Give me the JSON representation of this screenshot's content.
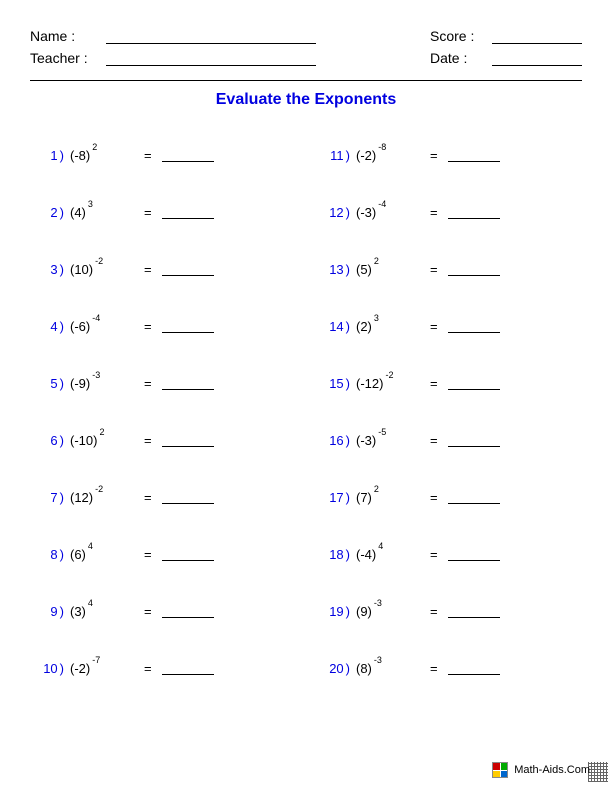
{
  "header": {
    "name_label": "Name :",
    "teacher_label": "Teacher :",
    "score_label": "Score :",
    "date_label": "Date :"
  },
  "title": {
    "text": "Evaluate the Exponents",
    "color": "#0000e0"
  },
  "number_color": "#0000e0",
  "columns": {
    "left": [
      {
        "n": "1",
        "base": "(-8)",
        "exp": "2"
      },
      {
        "n": "2",
        "base": "(4)",
        "exp": "3"
      },
      {
        "n": "3",
        "base": "(10)",
        "exp": "-2"
      },
      {
        "n": "4",
        "base": "(-6)",
        "exp": "-4"
      },
      {
        "n": "5",
        "base": "(-9)",
        "exp": "-3"
      },
      {
        "n": "6",
        "base": "(-10)",
        "exp": "2"
      },
      {
        "n": "7",
        "base": "(12)",
        "exp": "-2"
      },
      {
        "n": "8",
        "base": "(6)",
        "exp": "4"
      },
      {
        "n": "9",
        "base": "(3)",
        "exp": "4"
      },
      {
        "n": "10",
        "base": "(-2)",
        "exp": "-7"
      }
    ],
    "right": [
      {
        "n": "11",
        "base": "(-2)",
        "exp": "-8"
      },
      {
        "n": "12",
        "base": "(-3)",
        "exp": "-4"
      },
      {
        "n": "13",
        "base": "(5)",
        "exp": "2"
      },
      {
        "n": "14",
        "base": "(2)",
        "exp": "3"
      },
      {
        "n": "15",
        "base": "(-12)",
        "exp": "-2"
      },
      {
        "n": "16",
        "base": "(-3)",
        "exp": "-5"
      },
      {
        "n": "17",
        "base": "(7)",
        "exp": "2"
      },
      {
        "n": "18",
        "base": "(-4)",
        "exp": "4"
      },
      {
        "n": "19",
        "base": "(9)",
        "exp": "-3"
      },
      {
        "n": "20",
        "base": "(8)",
        "exp": "-3"
      }
    ]
  },
  "footer": {
    "text": "Math-Aids.Com",
    "logo_colors": [
      "#cc0000",
      "#00aa00",
      "#ffcc00",
      "#0066cc"
    ]
  }
}
